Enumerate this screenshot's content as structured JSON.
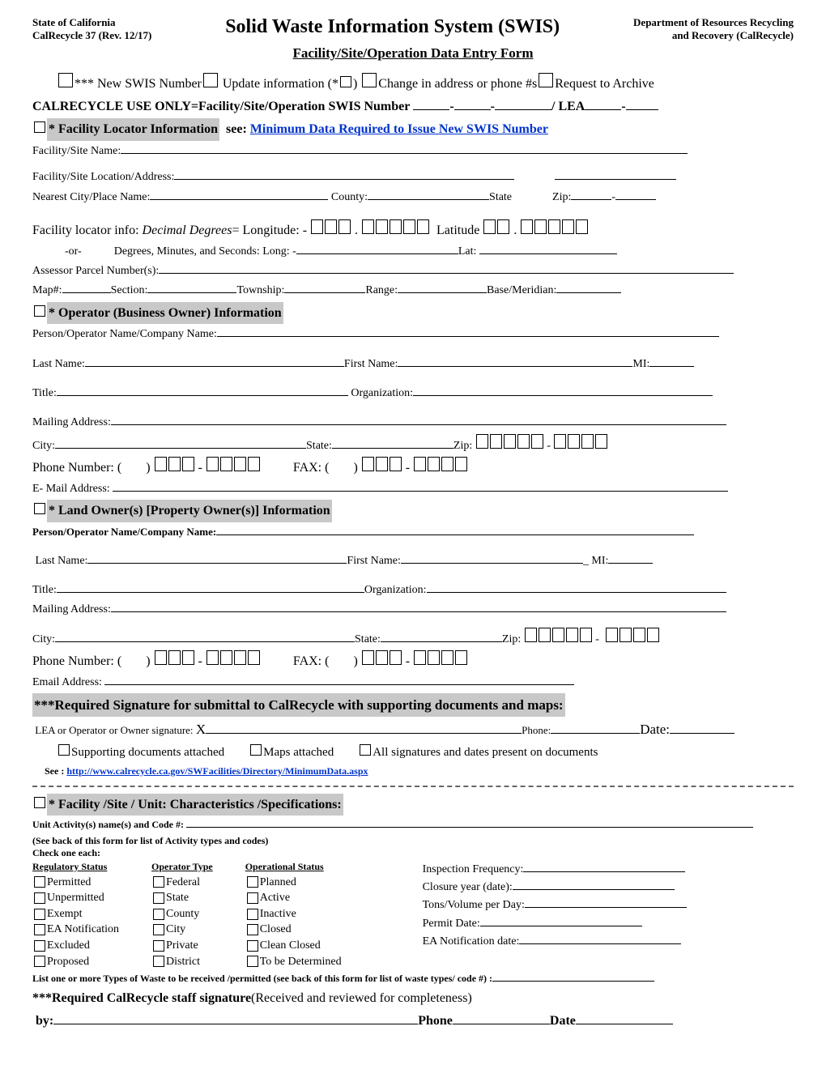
{
  "header": {
    "left_line1": "State of California",
    "left_line2": "CalRecycle 37 (Rev. 12/17)",
    "title": "Solid Waste Information System (SWIS)",
    "right_line1": "Department of Resources Recycling",
    "right_line2": "and Recovery (CalRecycle)",
    "subtitle": "Facility/Site/Operation Data Entry Form"
  },
  "top_options": {
    "opt1_prefix": "***",
    "opt1": "New SWIS Number",
    "opt2": "Update information (* ",
    "opt2_suffix": " )",
    "opt3": "Change in address or phone #s",
    "opt4": "Request to Archive",
    "use_only": "CALRECYCLE USE ONLY=Facility/Site/Operation SWIS Number",
    "lea": "/ LEA"
  },
  "section1": {
    "head": "* Facility Locator Information",
    "see": "see:",
    "link": "Minimum Data Required to Issue New SWIS Number",
    "site_name": "Facility/Site Name:",
    "site_loc": "Facility/Site Location/Address:",
    "nearest": "Nearest City/Place Name:",
    "county": "County:",
    "state": "State",
    "zip": "Zip:",
    "locator": "Facility locator info:",
    "dd": "Decimal Degrees",
    "eq": " = Longitude: -",
    "lat": "Latitude",
    "or": "-or-",
    "dms": "Degrees, Minutes, and Seconds:  Long: -",
    "dms_lat": "Lat:",
    "apn": "Assessor Parcel Number(s):",
    "map": "Map#:",
    "section": "Section:",
    "township": "Township:",
    "range": "Range:",
    "base": "Base/Meridian:"
  },
  "section2": {
    "head": "* Operator (Business Owner) Information",
    "person": "Person/Operator Name/Company Name:",
    "last": "Last Name:",
    "first": "First Name:",
    "mi": "MI:",
    "title": "Title:",
    "org": "Organization:",
    "mail": "Mailing Address:",
    "city": "City:",
    "state": "State:",
    "zip": "Zip:",
    "phone": "Phone Number:  (",
    "fax": "FAX: (",
    "email": "E- Mail Address:"
  },
  "section3": {
    "head": "* Land Owner(s) [Property Owner(s)] Information",
    "person": "Person/Operator Name/Company Name:",
    "last": "Last Name:",
    "first": "First Name:",
    "mi": "MI:",
    "title": "Title:",
    "org": "Organization:",
    "mail": "Mailing Address:",
    "city": "City:",
    "state": "State:",
    "zip": "Zip:",
    "phone": "Phone Number:  (",
    "fax": "FAX: (",
    "email": "Email Address:"
  },
  "signature": {
    "head": "***Required Signature for submittal to CalRecycle with supporting documents and maps:",
    "sigline": "LEA or Operator or Owner signature:",
    "x": "X",
    "phone": "Phone:",
    "date": "Date:",
    "supporting": "Supporting documents attached",
    "maps": "Maps attached",
    "allsigs": "All signatures and dates present on documents",
    "see": "See  :",
    "link": "http://www.calrecycle.ca.gov/SWFacilities/Directory/MinimumData.aspx"
  },
  "section4": {
    "head": "* Facility /Site / Unit: Characteristics /Specifications:",
    "unit": "Unit Activity(s) name(s) and Code #:",
    "seeback": "(See back of this form for list of Activity types and codes)",
    "checkone": "Check one each:",
    "col1_head": "Regulatory Status",
    "col1": [
      "Permitted",
      "Unpermitted",
      "Exempt",
      "EA Notification",
      "Excluded",
      "Proposed"
    ],
    "col2_head": "Operator Type",
    "col2": [
      "Federal",
      "State",
      "County",
      "City",
      "Private",
      "District"
    ],
    "col3_head": "Operational Status",
    "col3": [
      "Planned",
      "Active",
      "Inactive",
      "Closed",
      "Clean Closed",
      "To be Determined"
    ],
    "right_items": [
      "Inspection Frequency:",
      "Closure year (date):",
      "Tons/Volume per Day:",
      "Permit Date:",
      "EA Notification date:"
    ],
    "listone": "List one or more Types of Waste to be received /permitted (see back of this form for list of waste types/ code #) :",
    "reqstaff": "***Required CalRecycle staff signature",
    "reqstaff2": " (Received and reviewed for completeness)",
    "by": "by:",
    "phone": "Phone",
    "date": "Date"
  }
}
